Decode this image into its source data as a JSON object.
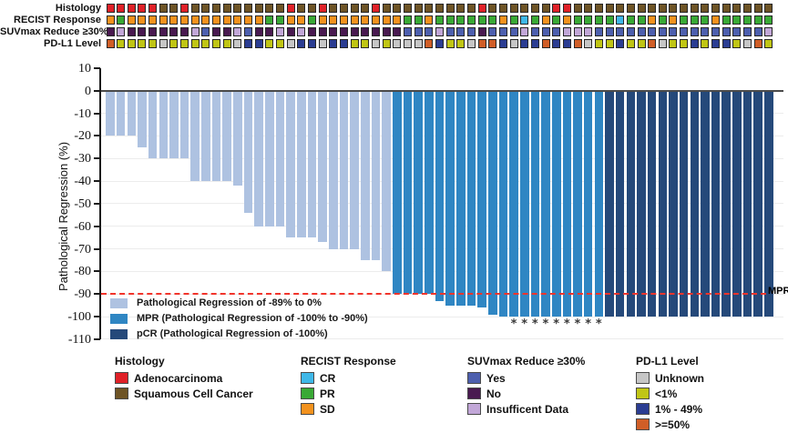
{
  "figure": {
    "description": "Waterfall plot of pathological regression with clinical annotation tracks"
  },
  "tracks": {
    "rows": [
      {
        "label": "Histology",
        "key": "histology"
      },
      {
        "label": "RECIST Response",
        "key": "recist"
      },
      {
        "label": "SUVmax Reduce ≥30%",
        "key": "suvmax"
      },
      {
        "label": "PD-L1 Level",
        "key": "pdl1"
      }
    ],
    "palette": {
      "histology": {
        "A": "#e02128",
        "S": "#6e5426"
      },
      "recist": {
        "C": "#3fb8e8",
        "G": "#39a935",
        "O": "#f3921e"
      },
      "suvmax": {
        "Y": "#4d5fae",
        "N": "#491a50",
        "I": "#c2a7d8"
      },
      "pdl1": {
        "U": "#c6c6c6",
        "L": "#c0c515",
        "M": "#2b3d92",
        "H": "#d05e27"
      }
    },
    "code_labels": {
      "histology": {
        "A": "Adenocarcinoma",
        "S": "Squamous Cell Cancer"
      },
      "recist": {
        "C": "CR",
        "G": "PR",
        "O": "SD"
      },
      "suvmax": {
        "Y": "Yes",
        "N": "No",
        "I": "Insufficent Data"
      },
      "pdl1": {
        "U": "Unknown",
        "L": "<1%",
        "M": "1% - 49%",
        "H": ">=50%"
      }
    },
    "cells": {
      "histology": [
        "A",
        "A",
        "A",
        "A",
        "A",
        "S",
        "S",
        "A",
        "S",
        "S",
        "S",
        "S",
        "S",
        "S",
        "S",
        "S",
        "S",
        "A",
        "S",
        "S",
        "A",
        "S",
        "S",
        "S",
        "S",
        "A",
        "S",
        "S",
        "S",
        "S",
        "S",
        "S",
        "S",
        "S",
        "S",
        "A",
        "S",
        "S",
        "S",
        "S",
        "S",
        "S",
        "A",
        "A",
        "S",
        "S",
        "S",
        "S",
        "S",
        "S",
        "S",
        "S",
        "S",
        "S",
        "S",
        "S",
        "S",
        "S",
        "S",
        "S",
        "S",
        "S",
        "S"
      ],
      "recist": [
        "O",
        "G",
        "O",
        "O",
        "O",
        "O",
        "O",
        "O",
        "O",
        "O",
        "O",
        "O",
        "O",
        "O",
        "O",
        "G",
        "G",
        "O",
        "O",
        "G",
        "O",
        "O",
        "O",
        "O",
        "O",
        "O",
        "O",
        "O",
        "G",
        "G",
        "O",
        "G",
        "G",
        "G",
        "G",
        "G",
        "G",
        "O",
        "G",
        "C",
        "G",
        "O",
        "G",
        "O",
        "G",
        "G",
        "G",
        "G",
        "C",
        "G",
        "G",
        "O",
        "G",
        "O",
        "G",
        "G",
        "G",
        "O",
        "G",
        "G",
        "G",
        "G",
        "G"
      ],
      "suvmax": [
        "N",
        "I",
        "N",
        "N",
        "N",
        "N",
        "N",
        "N",
        "I",
        "Y",
        "N",
        "N",
        "I",
        "Y",
        "N",
        "N",
        "I",
        "N",
        "I",
        "N",
        "N",
        "N",
        "N",
        "N",
        "N",
        "N",
        "N",
        "N",
        "Y",
        "Y",
        "Y",
        "I",
        "Y",
        "Y",
        "Y",
        "N",
        "Y",
        "Y",
        "Y",
        "I",
        "Y",
        "Y",
        "Y",
        "I",
        "I",
        "I",
        "Y",
        "Y",
        "Y",
        "Y",
        "Y",
        "Y",
        "Y",
        "Y",
        "Y",
        "Y",
        "Y",
        "Y",
        "Y",
        "Y",
        "Y",
        "Y",
        "I"
      ],
      "pdl1": [
        "H",
        "L",
        "L",
        "L",
        "L",
        "U",
        "L",
        "L",
        "L",
        "L",
        "L",
        "L",
        "U",
        "M",
        "M",
        "L",
        "L",
        "U",
        "M",
        "M",
        "U",
        "M",
        "M",
        "L",
        "L",
        "U",
        "L",
        "U",
        "U",
        "U",
        "H",
        "M",
        "L",
        "L",
        "U",
        "H",
        "H",
        "M",
        "U",
        "M",
        "M",
        "H",
        "M",
        "M",
        "H",
        "U",
        "L",
        "L",
        "M",
        "L",
        "L",
        "H",
        "U",
        "L",
        "L",
        "M",
        "L",
        "M",
        "M",
        "L",
        "U",
        "H",
        "L"
      ]
    }
  },
  "chart_data": {
    "type": "bar",
    "subtype": "waterfall",
    "title": "",
    "xlabel": "",
    "ylabel": "Pathological Regression (%)",
    "ylim": [
      -110,
      10
    ],
    "yticks": [
      10,
      0,
      -10,
      -20,
      -30,
      -40,
      -50,
      -60,
      -70,
      -80,
      -90,
      -100,
      -110
    ],
    "grid": "horizontal-light",
    "values": [
      -20,
      -20,
      -20,
      -25,
      -30,
      -30,
      -30,
      -30,
      -40,
      -40,
      -40,
      -40,
      -42,
      -54,
      -60,
      -60,
      -60,
      -65,
      -65,
      -65,
      -67,
      -70,
      -70,
      -70,
      -75,
      -75,
      -80,
      -90,
      -90,
      -90,
      -90,
      -93,
      -95,
      -95,
      -95,
      -96,
      -99,
      -100,
      -100,
      -100,
      -100,
      -100,
      -100,
      -100,
      -100,
      -100,
      -100,
      -100,
      -100,
      -100,
      -100,
      -100,
      -100,
      -100,
      -100,
      -100,
      -100,
      -100,
      -100,
      -100,
      -100,
      -100,
      -100
    ],
    "bar_groups": {
      "regression_count": 27,
      "mpr_count": 20,
      "pcr_count": 16
    },
    "colors": {
      "regression": "#aec2e1",
      "mpr": "#2f86c3",
      "pcr": "#25497a"
    },
    "asterisk_bars": [
      39,
      40,
      41,
      42,
      43,
      44,
      45,
      46,
      47
    ],
    "asterisk_glyph": "*",
    "mpr_line": {
      "y": -90,
      "label": "MPR",
      "color": "#f1342b"
    },
    "legend": [
      {
        "label": "Pathological Regression of -89% to 0%",
        "color": "#aec2e1"
      },
      {
        "label": "MPR (Pathological Regression of -100% to -90%)",
        "color": "#2f86c3"
      },
      {
        "label": "pCR (Pathological Regression of -100%)",
        "color": "#25497a"
      }
    ],
    "legend_position": "lower-left-inside"
  },
  "legends": [
    {
      "title": "Histology",
      "items": [
        {
          "label": "Adenocarcinoma",
          "color": "#e02128"
        },
        {
          "label": "Squamous Cell Cancer",
          "color": "#6e5426"
        }
      ]
    },
    {
      "title": "RECIST Response",
      "items": [
        {
          "label": "CR",
          "color": "#3fb8e8"
        },
        {
          "label": "PR",
          "color": "#39a935"
        },
        {
          "label": "SD",
          "color": "#f3921e"
        }
      ]
    },
    {
      "title": "SUVmax Reduce ≥30%",
      "items": [
        {
          "label": "Yes",
          "color": "#4d5fae"
        },
        {
          "label": "No",
          "color": "#491a50"
        },
        {
          "label": "Insufficent Data",
          "color": "#c2a7d8"
        }
      ]
    },
    {
      "title": "PD-L1 Level",
      "items": [
        {
          "label": "Unknown",
          "color": "#c6c6c6"
        },
        {
          "label": "<1%",
          "color": "#c0c515"
        },
        {
          "label": "1% - 49%",
          "color": "#2b3d92"
        },
        {
          "label": ">=50%",
          "color": "#d05e27"
        }
      ]
    }
  ]
}
